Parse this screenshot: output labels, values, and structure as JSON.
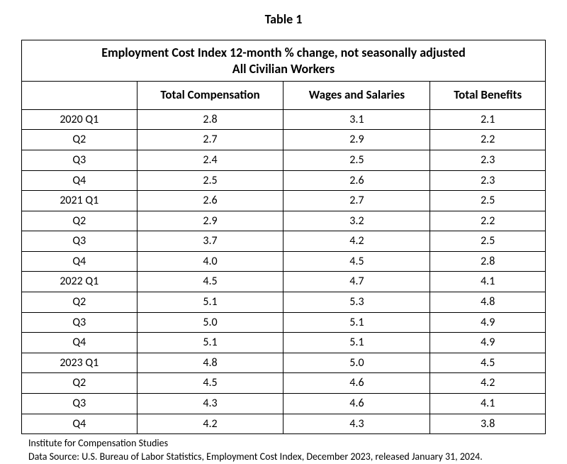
{
  "table_number": "Table 1",
  "title_line1": "Employment Cost Index 12-month % change, not seasonally adjusted",
  "title_line2": "All Civilian Workers",
  "columns": {
    "c0": "",
    "c1": "Total Compensation",
    "c2": "Wages and Salaries",
    "c3": "Total Benefits"
  },
  "rows": [
    {
      "period": "2020 Q1",
      "total_comp": "2.8",
      "wages": "3.1",
      "benefits": "2.1"
    },
    {
      "period": "Q2",
      "total_comp": "2.7",
      "wages": "2.9",
      "benefits": "2.2"
    },
    {
      "period": "Q3",
      "total_comp": "2.4",
      "wages": "2.5",
      "benefits": "2.3"
    },
    {
      "period": "Q4",
      "total_comp": "2.5",
      "wages": "2.6",
      "benefits": "2.3"
    },
    {
      "period": "2021 Q1",
      "total_comp": "2.6",
      "wages": "2.7",
      "benefits": "2.5"
    },
    {
      "period": "Q2",
      "total_comp": "2.9",
      "wages": "3.2",
      "benefits": "2.2"
    },
    {
      "period": "Q3",
      "total_comp": "3.7",
      "wages": "4.2",
      "benefits": "2.5"
    },
    {
      "period": "Q4",
      "total_comp": "4.0",
      "wages": "4.5",
      "benefits": "2.8"
    },
    {
      "period": "2022 Q1",
      "total_comp": "4.5",
      "wages": "4.7",
      "benefits": "4.1"
    },
    {
      "period": "Q2",
      "total_comp": "5.1",
      "wages": "5.3",
      "benefits": "4.8"
    },
    {
      "period": "Q3",
      "total_comp": "5.0",
      "wages": "5.1",
      "benefits": "4.9"
    },
    {
      "period": "Q4",
      "total_comp": "5.1",
      "wages": "5.1",
      "benefits": "4.9"
    },
    {
      "period": "2023 Q1",
      "total_comp": "4.8",
      "wages": "5.0",
      "benefits": "4.5"
    },
    {
      "period": "Q2",
      "total_comp": "4.5",
      "wages": "4.6",
      "benefits": "4.2"
    },
    {
      "period": "Q3",
      "total_comp": "4.3",
      "wages": "4.6",
      "benefits": "4.1"
    },
    {
      "period": "Q4",
      "total_comp": "4.2",
      "wages": "4.3",
      "benefits": "3.8"
    }
  ],
  "footnote1": "Institute for Compensation Studies",
  "footnote2": "Data Source: U.S. Bureau of Labor Statistics, Employment Cost Index, December 2023, released January 31, 2024.",
  "style": {
    "type": "table",
    "background_color": "#ffffff",
    "border_color": "#000000",
    "text_color": "#000000",
    "font_family": "Calibri",
    "title_fontsize_pt": 14,
    "header_fontsize_pt": 13,
    "body_fontsize_pt": 12,
    "footnote_fontsize_pt": 10.5,
    "column_widths_pct": [
      22,
      28,
      28,
      22
    ],
    "column_align": [
      "center",
      "center",
      "center",
      "center"
    ]
  }
}
